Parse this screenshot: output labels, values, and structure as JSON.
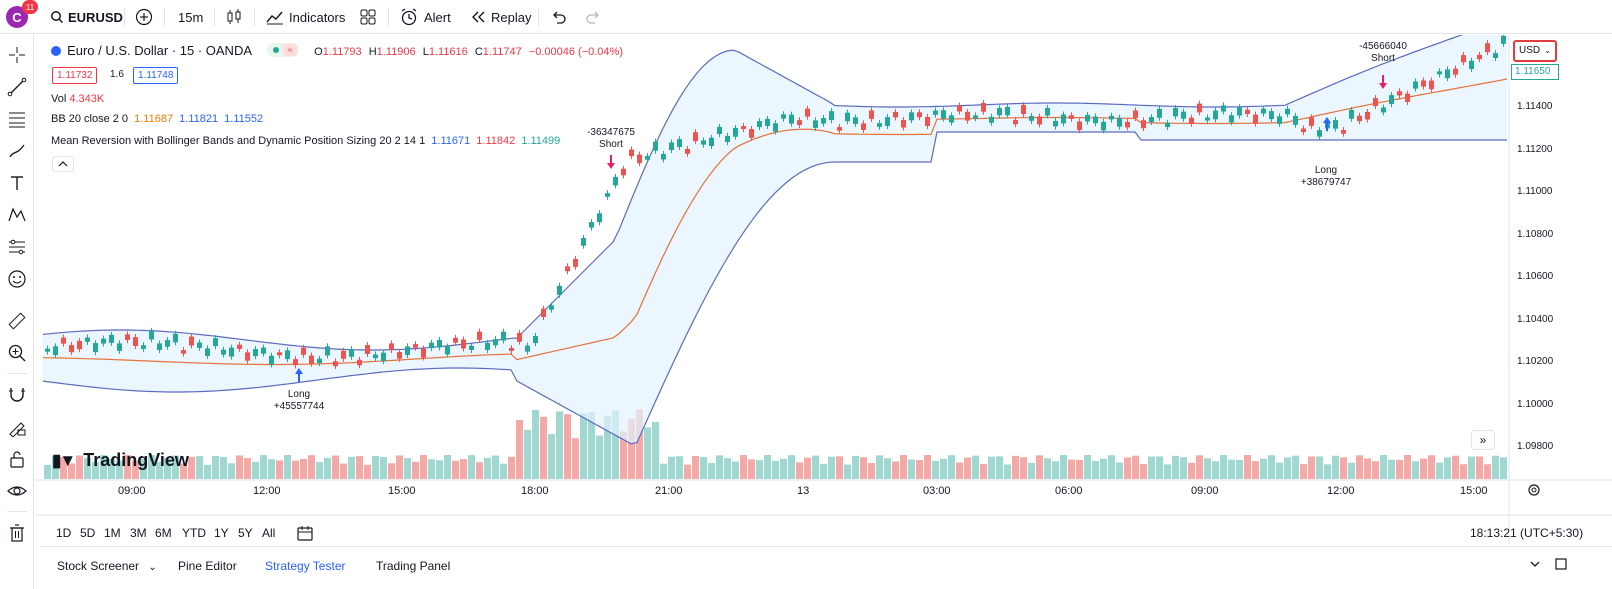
{
  "topbar": {
    "avatar_letter": "C",
    "notification_count": "11",
    "symbol": "EURUSD",
    "interval": "15m",
    "indicators_label": "Indicators",
    "alert_label": "Alert",
    "replay_label": "Replay"
  },
  "legend": {
    "instrument": "Euro / U.S. Dollar · 15 · OANDA",
    "ohlc_o_label": "O",
    "ohlc_o": "1.11793",
    "ohlc_h_label": "H",
    "ohlc_h": "1.11906",
    "ohlc_l_label": "L",
    "ohlc_l": "1.11616",
    "ohlc_c_label": "C",
    "ohlc_c": "1.11747",
    "change": "−0.00046 (−0.04%)",
    "sell_price": "1.11732",
    "spread": "1.6",
    "buy_price": "1.11748",
    "vol_label": "Vol",
    "vol_value": "4.343K",
    "bb_label": "BB 20 close 2 0",
    "bb_basis": "1.11687",
    "bb_upper": "1.11821",
    "bb_lower": "1.11552",
    "strategy_label": "Mean Reversion with Bollinger Bands and Dynamic Position Sizing 20 2 14 1",
    "strat_v1": "1.11671",
    "strat_v2": "1.11842",
    "strat_v3": "1.11499"
  },
  "price_axis": {
    "currency": "USD",
    "current_price": "1.11650",
    "ticks": [
      "1.11400",
      "1.11200",
      "1.11000",
      "1.10800",
      "1.10600",
      "1.10400",
      "1.10200",
      "1.10000",
      "1.09800"
    ]
  },
  "time_axis": {
    "ticks": [
      "09:00",
      "12:00",
      "15:00",
      "18:00",
      "21:00",
      "13",
      "03:00",
      "06:00",
      "09:00",
      "12:00",
      "15:00"
    ]
  },
  "trades": [
    {
      "side": "Long",
      "qty": "+45557744"
    },
    {
      "side": "Short",
      "qty": "-36347675"
    },
    {
      "side": "Long",
      "qty": "+38679747"
    },
    {
      "side": "Short",
      "qty": "-45666040"
    }
  ],
  "watermark": "TradingView",
  "ranges": [
    "1D",
    "5D",
    "1M",
    "3M",
    "6M",
    "YTD",
    "1Y",
    "5Y",
    "All"
  ],
  "clock": "18:13:21 (UTC+5:30)",
  "bottom_tabs": {
    "screener": "Stock Screener",
    "pine": "Pine Editor",
    "strategy": "Strategy Tester",
    "trading": "Trading Panel"
  },
  "colors": {
    "up": "#26a69a",
    "down": "#ef5350",
    "bb_band": "#5b6bbf",
    "bb_basis": "#e5713b",
    "accent": "#2962ff"
  }
}
